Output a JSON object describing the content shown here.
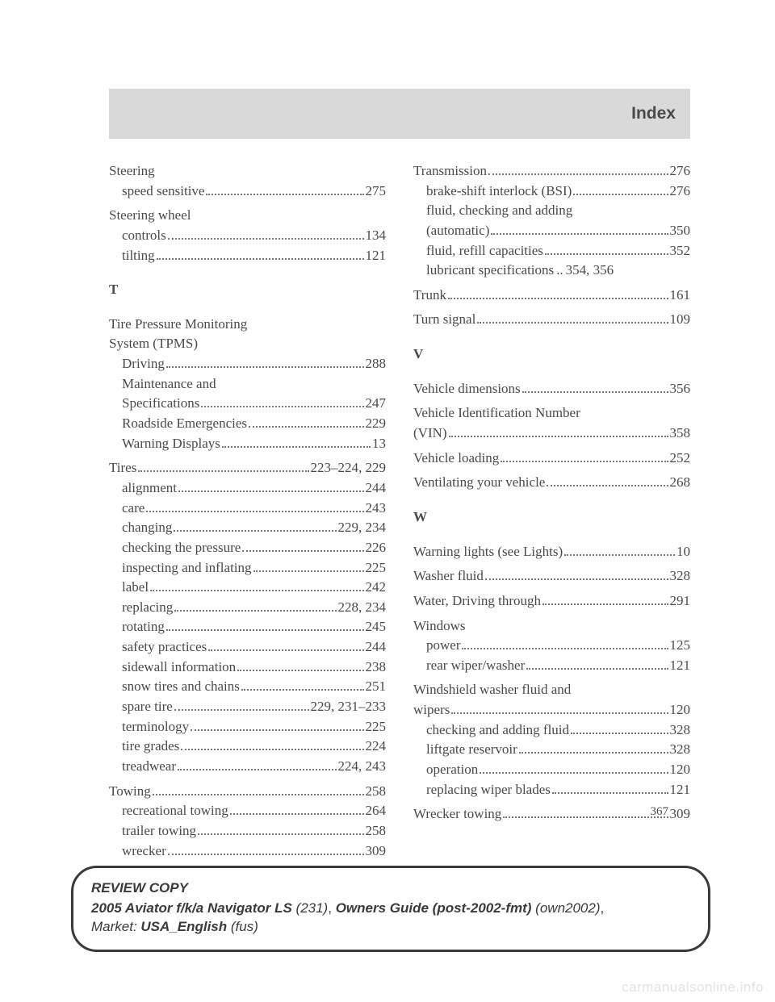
{
  "header": {
    "title": "Index"
  },
  "page_number": "367",
  "left": {
    "steering": {
      "head": "Steering",
      "items": [
        {
          "label": "speed sensitive",
          "page": "275"
        }
      ]
    },
    "steering_wheel": {
      "head": "Steering wheel",
      "items": [
        {
          "label": "controls",
          "page": "134"
        },
        {
          "label": "tilting",
          "page": "121"
        }
      ]
    },
    "letter_t": "T",
    "tpms": {
      "head1": "Tire Pressure Monitoring",
      "head2": "System (TPMS)",
      "items": [
        {
          "label": "Driving",
          "page": "288"
        },
        {
          "label_a": "Maintenance and",
          "label_b": "Specifications",
          "page": "247"
        },
        {
          "label": "Roadside Emergencies",
          "page": "229"
        },
        {
          "label": "Warning Displays",
          "page": "13"
        }
      ]
    },
    "tires": {
      "head_label": "Tires",
      "head_page": "223–224, 229",
      "items": [
        {
          "label": "alignment",
          "page": "244"
        },
        {
          "label": "care",
          "page": "243"
        },
        {
          "label": "changing",
          "page": "229, 234"
        },
        {
          "label": "checking the pressure",
          "page": "226"
        },
        {
          "label": "inspecting and inflating",
          "page": "225"
        },
        {
          "label": "label",
          "page": "242"
        },
        {
          "label": "replacing",
          "page": "228, 234"
        },
        {
          "label": "rotating",
          "page": "245"
        },
        {
          "label": "safety practices",
          "page": "244"
        },
        {
          "label": "sidewall information",
          "page": "238"
        },
        {
          "label": "snow tires and chains",
          "page": "251"
        },
        {
          "label": "spare tire",
          "page": "229, 231–233"
        },
        {
          "label": "terminology",
          "page": "225"
        },
        {
          "label": "tire grades",
          "page": "224"
        },
        {
          "label": "treadwear",
          "page": "224, 243"
        }
      ]
    },
    "towing": {
      "head_label": "Towing",
      "head_page": "258",
      "items": [
        {
          "label": "recreational towing",
          "page": "264"
        },
        {
          "label": "trailer towing",
          "page": "258"
        },
        {
          "label": "wrecker",
          "page": "309"
        }
      ]
    }
  },
  "right": {
    "transmission": {
      "head_label": "Transmission",
      "head_page": "276",
      "items": [
        {
          "label": "brake-shift interlock (BSI)",
          "page": "276"
        },
        {
          "label_a": "fluid, checking and adding",
          "label_b": "(automatic)",
          "page": "350"
        },
        {
          "label": "fluid, refill capacities",
          "page": "352"
        },
        {
          "label": "lubricant specifications",
          "page": "354, 356",
          "tight": true
        }
      ]
    },
    "trunk": {
      "label": "Trunk",
      "page": "161"
    },
    "turn": {
      "label": "Turn signal",
      "page": "109"
    },
    "letter_v": "V",
    "vdim": {
      "label": "Vehicle dimensions",
      "page": "356"
    },
    "vin": {
      "label_a": "Vehicle Identification Number",
      "label_b": "(VIN)",
      "page": "358"
    },
    "vload": {
      "label": "Vehicle loading",
      "page": "252"
    },
    "vent": {
      "label": "Ventilating your vehicle",
      "page": "268"
    },
    "letter_w": "W",
    "wlights": {
      "label": "Warning lights (see Lights)",
      "page": "10"
    },
    "washer": {
      "label": "Washer fluid",
      "page": "328"
    },
    "water": {
      "label": "Water, Driving through",
      "page": "291"
    },
    "windows": {
      "head": "Windows",
      "items": [
        {
          "label": "power",
          "page": "125"
        },
        {
          "label": "rear wiper/washer",
          "page": "121"
        }
      ]
    },
    "wipers": {
      "head_a": "Windshield washer fluid and",
      "head_b": "wipers",
      "head_page": "120",
      "items": [
        {
          "label": "checking and adding fluid",
          "page": "328"
        },
        {
          "label": "liftgate reservoir",
          "page": "328"
        },
        {
          "label": "operation",
          "page": "120"
        },
        {
          "label": "replacing wiper blades",
          "page": "121"
        }
      ]
    },
    "wrecker": {
      "label": "Wrecker towing",
      "page": "309"
    }
  },
  "footer": {
    "line1": "REVIEW COPY",
    "l2a": "2005 Aviator f/k/a Navigator LS",
    "l2b": " (231)",
    "l2c": ", ",
    "l2d": "Owners Guide (post-2002-fmt)",
    "l2e": " (own2002)",
    "l2f": ",",
    "l3a": "Market: ",
    "l3b": "USA_English",
    "l3c": " (fus)"
  },
  "watermark": "carmanualsonline.info"
}
